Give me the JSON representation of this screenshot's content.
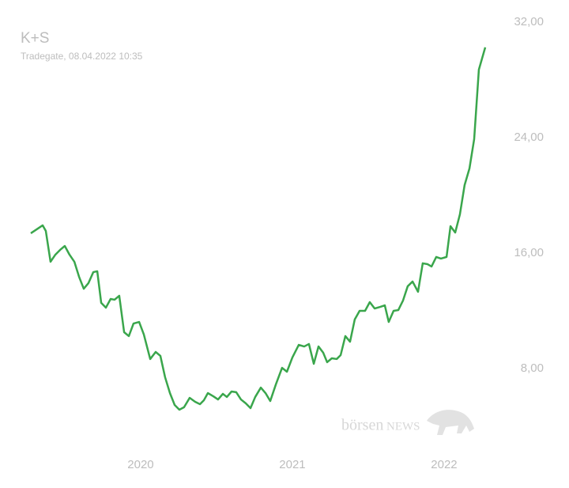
{
  "chart_data": {
    "type": "line",
    "title": "K+S",
    "subtitle": "Tradegate, 08.04.2022 10:35",
    "watermark": {
      "prefix": "börsen",
      "suffix": "NEWS"
    },
    "color": "#3aa64c",
    "xlim": [
      2019.073,
      2022.823
    ],
    "xticks": [
      2020,
      2021,
      2022
    ],
    "ylim": [
      0,
      33.53
    ],
    "yticks": [
      {
        "value": 8,
        "label": "8,00"
      },
      {
        "value": 16,
        "label": "16,00"
      },
      {
        "value": 24,
        "label": "24,00"
      },
      {
        "value": 32,
        "label": "32,00"
      }
    ],
    "x": [
      2019.276,
      2019.354,
      2019.375,
      2019.406,
      2019.438,
      2019.469,
      2019.5,
      2019.531,
      2019.563,
      2019.594,
      2019.625,
      2019.656,
      2019.688,
      2019.714,
      2019.74,
      2019.771,
      2019.802,
      2019.828,
      2019.859,
      2019.891,
      2019.922,
      2019.953,
      2019.99,
      2020.021,
      2020.063,
      2020.099,
      2020.13,
      2020.161,
      2020.193,
      2020.224,
      2020.255,
      2020.286,
      2020.323,
      2020.359,
      2020.391,
      2020.417,
      2020.443,
      2020.479,
      2020.51,
      2020.542,
      2020.568,
      2020.599,
      2020.63,
      2020.661,
      2020.693,
      2020.724,
      2020.755,
      2020.792,
      2020.823,
      2020.854,
      2020.891,
      2020.932,
      2020.964,
      2021,
      2021.042,
      2021.078,
      2021.109,
      2021.141,
      2021.172,
      2021.203,
      2021.229,
      2021.26,
      2021.292,
      2021.318,
      2021.349,
      2021.38,
      2021.411,
      2021.443,
      2021.479,
      2021.51,
      2021.542,
      2021.578,
      2021.609,
      2021.635,
      2021.667,
      2021.698,
      2021.729,
      2021.76,
      2021.792,
      2021.828,
      2021.859,
      2021.891,
      2021.917,
      2021.948,
      2021.979,
      2022.016,
      2022.042,
      2022.073,
      2022.104,
      2022.135,
      2022.167,
      2022.198,
      2022.229,
      2022.271
    ],
    "values": [
      17.37,
      17.92,
      17.53,
      15.4,
      15.89,
      16.22,
      16.49,
      15.89,
      15.4,
      14.36,
      13.53,
      13.92,
      14.68,
      14.74,
      12.55,
      12.22,
      12.82,
      12.77,
      13.04,
      10.52,
      10.25,
      11.12,
      11.23,
      10.36,
      8.66,
      9.15,
      8.88,
      7.4,
      6.3,
      5.48,
      5.15,
      5.32,
      5.97,
      5.7,
      5.53,
      5.81,
      6.3,
      6.08,
      5.86,
      6.25,
      6.03,
      6.41,
      6.36,
      5.86,
      5.59,
      5.26,
      6.03,
      6.68,
      6.3,
      5.75,
      6.9,
      8.05,
      7.78,
      8.77,
      9.64,
      9.53,
      9.7,
      8.33,
      9.53,
      9.1,
      8.44,
      8.71,
      8.66,
      8.93,
      10.25,
      9.86,
      11.4,
      12.0,
      12.0,
      12.6,
      12.16,
      12.27,
      12.38,
      11.23,
      12.0,
      12.05,
      12.71,
      13.7,
      14.03,
      13.32,
      15.29,
      15.23,
      15.07,
      15.73,
      15.62,
      15.73,
      17.86,
      17.42,
      18.68,
      20.71,
      21.86,
      23.89,
      28.71,
      30.25
    ]
  }
}
